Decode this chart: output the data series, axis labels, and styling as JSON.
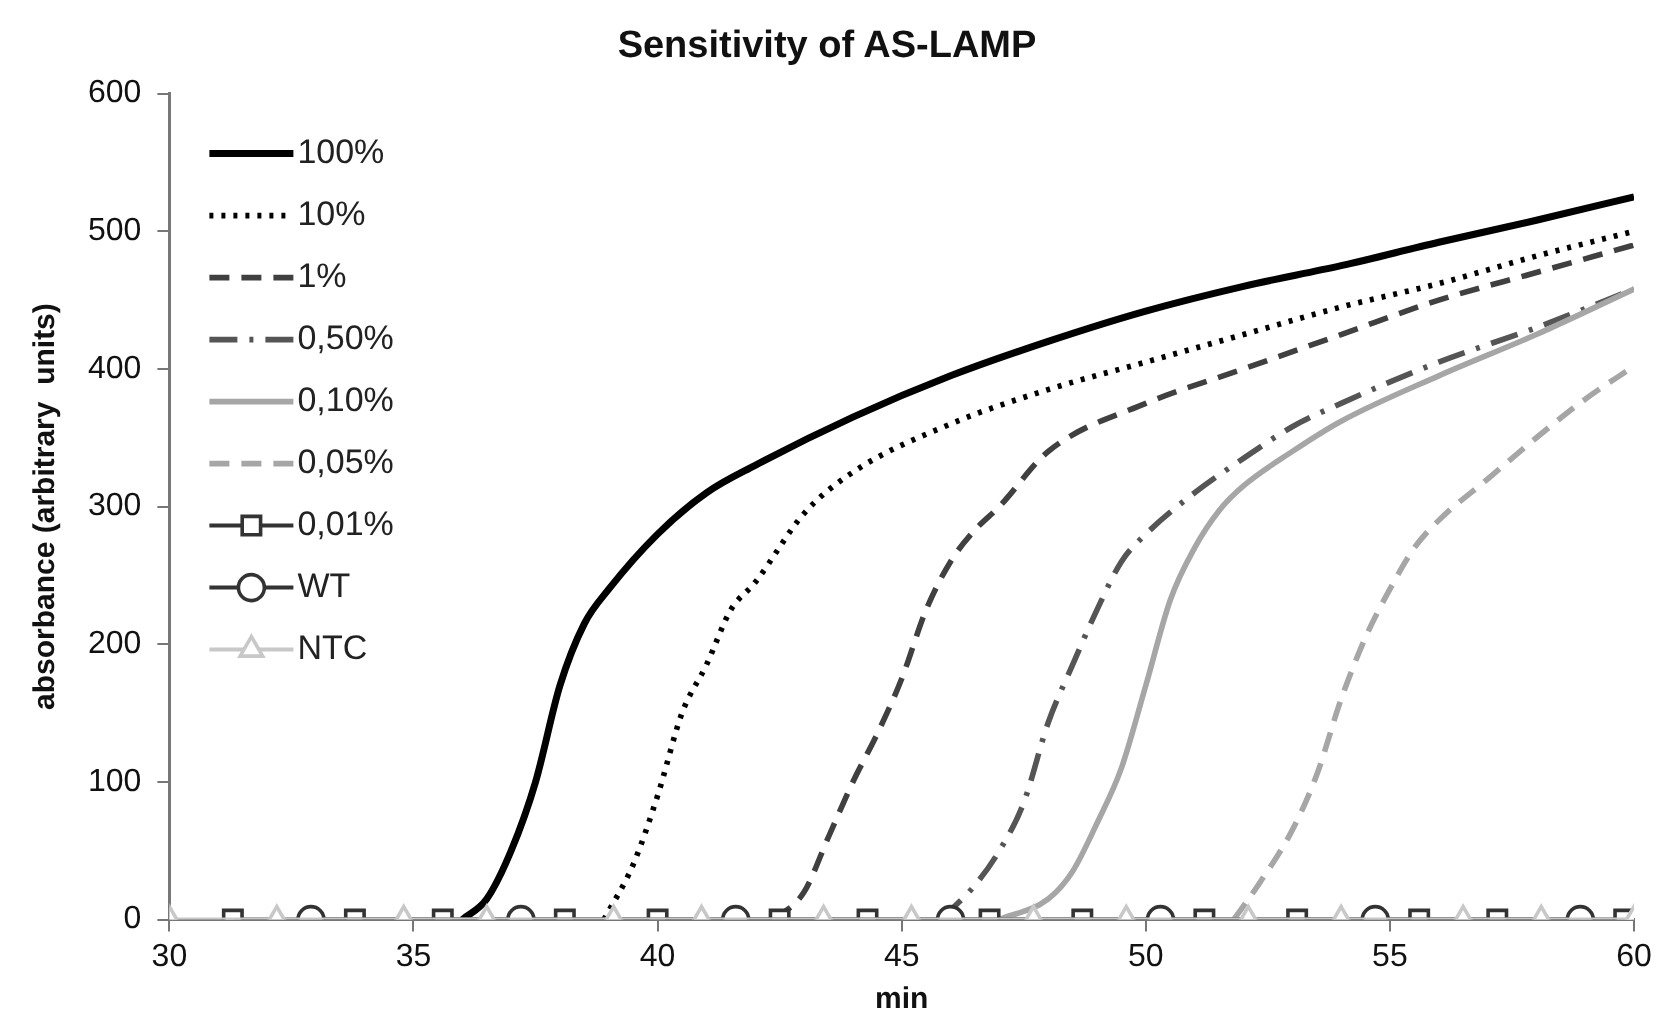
{
  "chart_data": {
    "type": "line",
    "title": "Sensitivity of AS-LAMP",
    "xlabel": "min",
    "ylabel": "absorbance (arbitrary  units)",
    "xlim": [
      30,
      60
    ],
    "xticks": [
      30,
      35,
      40,
      45,
      50,
      55,
      60
    ],
    "ylim": [
      0,
      600
    ],
    "yticks": [
      0,
      100,
      200,
      300,
      400,
      500,
      600
    ],
    "grid": false,
    "legend": "top left",
    "marker": "none",
    "series": [
      {
        "name": "100%",
        "color": "#000000",
        "line_style": "solid",
        "x": [
          36,
          36.5,
          37,
          37.5,
          38,
          38.5,
          39,
          40,
          41,
          42,
          44,
          46,
          48,
          50,
          52,
          54,
          56,
          58,
          60
        ],
        "values": [
          0,
          15,
          50,
          100,
          170,
          215,
          240,
          280,
          310,
          330,
          365,
          395,
          420,
          442,
          460,
          475,
          492,
          508,
          525
        ]
      },
      {
        "name": "10%",
        "color": "#000000",
        "line_style": "dotted",
        "x": [
          38.9,
          39.5,
          40,
          40.5,
          41,
          41.5,
          42,
          43,
          44,
          46,
          48,
          50,
          52,
          54,
          56,
          58,
          60
        ],
        "values": [
          0,
          40,
          90,
          150,
          185,
          225,
          245,
          295,
          325,
          360,
          385,
          405,
          425,
          445,
          462,
          482,
          500
        ]
      },
      {
        "name": "1%",
        "color": "#404040",
        "line_style": "dashed",
        "x": [
          42.4,
          43,
          43.5,
          44,
          44.5,
          45,
          45.5,
          46,
          46.5,
          47,
          48,
          50,
          52,
          54,
          56,
          58,
          60
        ],
        "values": [
          0,
          20,
          60,
          100,
          135,
          175,
          225,
          260,
          283,
          300,
          340,
          375,
          400,
          425,
          450,
          470,
          490
        ]
      },
      {
        "name": "0,50%",
        "color": "#555555",
        "line_style": "dashdot",
        "x": [
          45.8,
          46.5,
          47,
          47.5,
          48,
          48.5,
          49,
          49.5,
          50,
          51,
          52,
          53,
          54,
          56,
          58,
          60
        ],
        "values": [
          0,
          25,
          50,
          85,
          143,
          185,
          225,
          260,
          280,
          310,
          335,
          358,
          375,
          405,
          430,
          458
        ]
      },
      {
        "name": "0,10%",
        "color": "#a6a6a6",
        "line_style": "solid",
        "x": [
          47,
          48,
          48.5,
          49,
          49.5,
          50,
          50.5,
          51,
          51.5,
          52,
          53,
          54,
          56,
          58,
          60
        ],
        "values": [
          0,
          15,
          35,
          70,
          110,
          170,
          232,
          270,
          297,
          315,
          340,
          362,
          395,
          425,
          458
        ]
      },
      {
        "name": "0,05%",
        "color": "#a6a6a6",
        "line_style": "dashed",
        "x": [
          51.8,
          52.3,
          53,
          53.5,
          54,
          54.5,
          55,
          55.5,
          56,
          57,
          58,
          59,
          60
        ],
        "values": [
          0,
          25,
          65,
          105,
          160,
          205,
          240,
          270,
          290,
          320,
          350,
          378,
          402
        ]
      },
      {
        "name": "0,01%",
        "color": "#333333",
        "line_style": "solid",
        "marker": "square",
        "x": [
          31.3,
          33.8,
          35.6,
          38.1,
          40,
          42.5,
          44.3,
          46.8,
          48.7,
          51.2,
          53.1,
          55.6,
          57.2,
          59.8
        ],
        "values": [
          0,
          0,
          0,
          0,
          0,
          0,
          0,
          0,
          0,
          0,
          0,
          0,
          0,
          0
        ]
      },
      {
        "name": "WT",
        "color": "#333333",
        "line_style": "solid",
        "marker": "circle",
        "x": [
          32.9,
          37.2,
          41.6,
          46,
          50.3,
          54.7,
          58.9
        ],
        "values": [
          0,
          0,
          0,
          0,
          0,
          0,
          0
        ]
      },
      {
        "name": "NTC",
        "color": "#c8c8c8",
        "line_style": "solid",
        "marker": "triangle",
        "x": [
          30,
          32.2,
          34.8,
          36.5,
          39.1,
          40.9,
          43.4,
          45.2,
          47.7,
          49.6,
          52.1,
          54,
          56.5,
          58.1,
          60
        ],
        "values": [
          0,
          0,
          0,
          0,
          0,
          0,
          0,
          0,
          0,
          0,
          0,
          0,
          0,
          0,
          0
        ]
      }
    ]
  }
}
